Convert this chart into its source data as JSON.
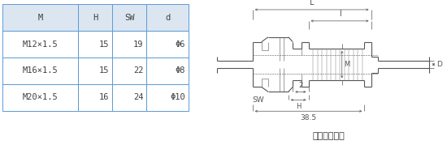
{
  "table": {
    "headers": [
      "M",
      "H",
      "SW",
      "d"
    ],
    "rows": [
      [
        "M12×1.5",
        "15",
        "19",
        "Φ6"
      ],
      [
        "M16×1.5",
        "15",
        "22",
        "Φ8"
      ],
      [
        "M20×1.5",
        "16",
        "24",
        "Φ10"
      ]
    ],
    "header_bg": "#dce6f1",
    "row_bg": "#ffffff",
    "border_color": "#5b9bd5",
    "text_color": "#404040",
    "font_size": 7.5
  },
  "drawing": {
    "title": "卡套螺紋接頭",
    "line_color": "#555555",
    "dim_color": "#555555",
    "font_size": 6.5,
    "title_font_size": 8
  },
  "background_color": "#ffffff",
  "fig_width": 5.5,
  "fig_height": 1.79
}
